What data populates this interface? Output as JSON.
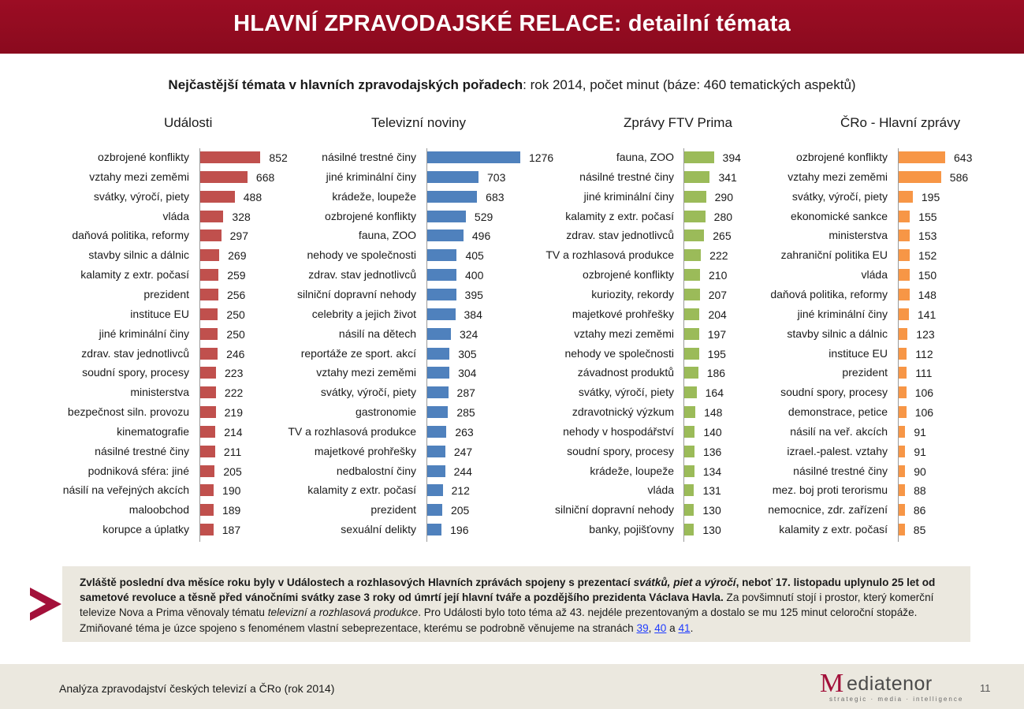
{
  "header": {
    "title": "HLAVNÍ ZPRAVODAJSKÉ RELACE: detailní témata"
  },
  "subtitle": {
    "bold": "Nejčastější témata v hlavních zpravodajských pořadech",
    "rest": ": rok 2014, počet minut (báze: 460 tematických aspektů)"
  },
  "colors": {
    "udalosti": "#c0504d",
    "televizni": "#4f81bd",
    "prima": "#9bbb59",
    "cro": "#f79646",
    "header": "#9c0d24"
  },
  "chart_data": [
    {
      "type": "bar",
      "orientation": "horizontal",
      "title": "Události",
      "unit": "minutes",
      "categories": [
        "ozbrojené konflikty",
        "vztahy mezi zeměmi",
        "svátky, výročí, piety",
        "vláda",
        "daňová politika, reformy",
        "stavby silnic a dálnic",
        "kalamity z extr. počasí",
        "prezident",
        "instituce EU",
        "jiné kriminální činy",
        "zdrav. stav jednotlivců",
        "soudní spory, procesy",
        "ministerstva",
        "bezpečnost siln. provozu",
        "kinematografie",
        "násilné trestné činy",
        "podniková sféra: jiné",
        "násilí na veřejných akcích",
        "maloobchod",
        "korupce a úplatky"
      ],
      "values": [
        852,
        668,
        488,
        328,
        297,
        269,
        259,
        256,
        250,
        250,
        246,
        223,
        222,
        219,
        214,
        211,
        205,
        190,
        189,
        187
      ]
    },
    {
      "type": "bar",
      "orientation": "horizontal",
      "title": "Televizní noviny",
      "unit": "minutes",
      "categories": [
        "násilné trestné činy",
        "jiné kriminální činy",
        "krádeže, loupeže",
        "ozbrojené konflikty",
        "fauna, ZOO",
        "nehody ve společnosti",
        "zdrav. stav jednotlivců",
        "silniční dopravní nehody",
        "celebrity a jejich život",
        "násilí na dětech",
        "reportáže ze sport. akcí",
        "vztahy mezi zeměmi",
        "svátky, výročí, piety",
        "gastronomie",
        "TV a rozhlasová produkce",
        "majetkové prohřešky",
        "nedbalostní činy",
        "kalamity z extr. počasí",
        "prezident",
        "sexuální delikty"
      ],
      "values": [
        1276,
        703,
        683,
        529,
        496,
        405,
        400,
        395,
        384,
        324,
        305,
        304,
        287,
        285,
        263,
        247,
        244,
        212,
        205,
        196
      ]
    },
    {
      "type": "bar",
      "orientation": "horizontal",
      "title": "Zprávy FTV Prima",
      "unit": "minutes",
      "categories": [
        "fauna, ZOO",
        "násilné trestné činy",
        "jiné kriminální činy",
        "kalamity z extr. počasí",
        "zdrav. stav jednotlivců",
        "TV a rozhlasová produkce",
        "ozbrojené konflikty",
        "kuriozity, rekordy",
        "majetkové prohřešky",
        "vztahy mezi zeměmi",
        "nehody ve společnosti",
        "závadnost produktů",
        "svátky, výročí, piety",
        "zdravotnický výzkum",
        "nehody v hospodářství",
        "soudní spory, procesy",
        "krádeže, loupeže",
        "vláda",
        "silniční dopravní nehody",
        "banky, pojišťovny"
      ],
      "values": [
        394,
        341,
        290,
        280,
        265,
        222,
        210,
        207,
        204,
        197,
        195,
        186,
        164,
        148,
        140,
        136,
        134,
        131,
        130,
        130
      ]
    },
    {
      "type": "bar",
      "orientation": "horizontal",
      "title": "ČRo - Hlavní zprávy",
      "unit": "minutes",
      "categories": [
        "ozbrojené konflikty",
        "vztahy mezi zeměmi",
        "svátky, výročí, piety",
        "ekonomické sankce",
        "ministerstva",
        "zahraniční politika EU",
        "vláda",
        "daňová politika, reformy",
        "jiné kriminální činy",
        "stavby silnic a dálnic",
        "instituce EU",
        "prezident",
        "soudní spory, procesy",
        "demonstrace, petice",
        "násilí na veř. akcích",
        "izrael.-palest. vztahy",
        "násilné trestné činy",
        "mez. boj proti terorismu",
        "nemocnice, zdr. zařízení",
        "kalamity z extr. počasí"
      ],
      "values": [
        643,
        586,
        195,
        155,
        153,
        152,
        150,
        148,
        141,
        123,
        112,
        111,
        106,
        106,
        91,
        91,
        90,
        88,
        86,
        85
      ]
    }
  ],
  "callout": {
    "s1": "Zvláště poslední dva měsíce roku byly v Událostech a rozhlasových Hlavních zprávách spojeny s prezentací ",
    "s1i": "svátků, piet a výročí",
    "s2": ", neboť 17. listopadu uplynulo 25 let od sametové revoluce a těsně před vánočními svátky zase 3 roky od úmrtí její hlavní tváře a pozdějšího prezidenta Václava Havla.",
    "s3": " Za povšimnutí stojí i prostor, který komerční televize Nova a Prima věnovaly tématu ",
    "s3i": "televizní a rozhlasová produkce",
    "s4": ". Pro Události bylo toto téma až 43. nejdéle prezentovaným a dostalo se mu 125 minut celoroční stopáže. Zmiňované téma je úzce spojeno s fenoménem vlastní sebeprezentace, kterému se podrobně věnujeme na stranách ",
    "link1": "39",
    "sep1": ", ",
    "link2": "40",
    "sep2": " a ",
    "link3": "41",
    "end": "."
  },
  "footer": {
    "text": "Analýza zpravodajství českých televizí a ČRo (rok 2014)",
    "logo_m": "M",
    "logo_name": "ediatenor",
    "logo_tag": "strategic · media · intelligence",
    "page": "11"
  }
}
